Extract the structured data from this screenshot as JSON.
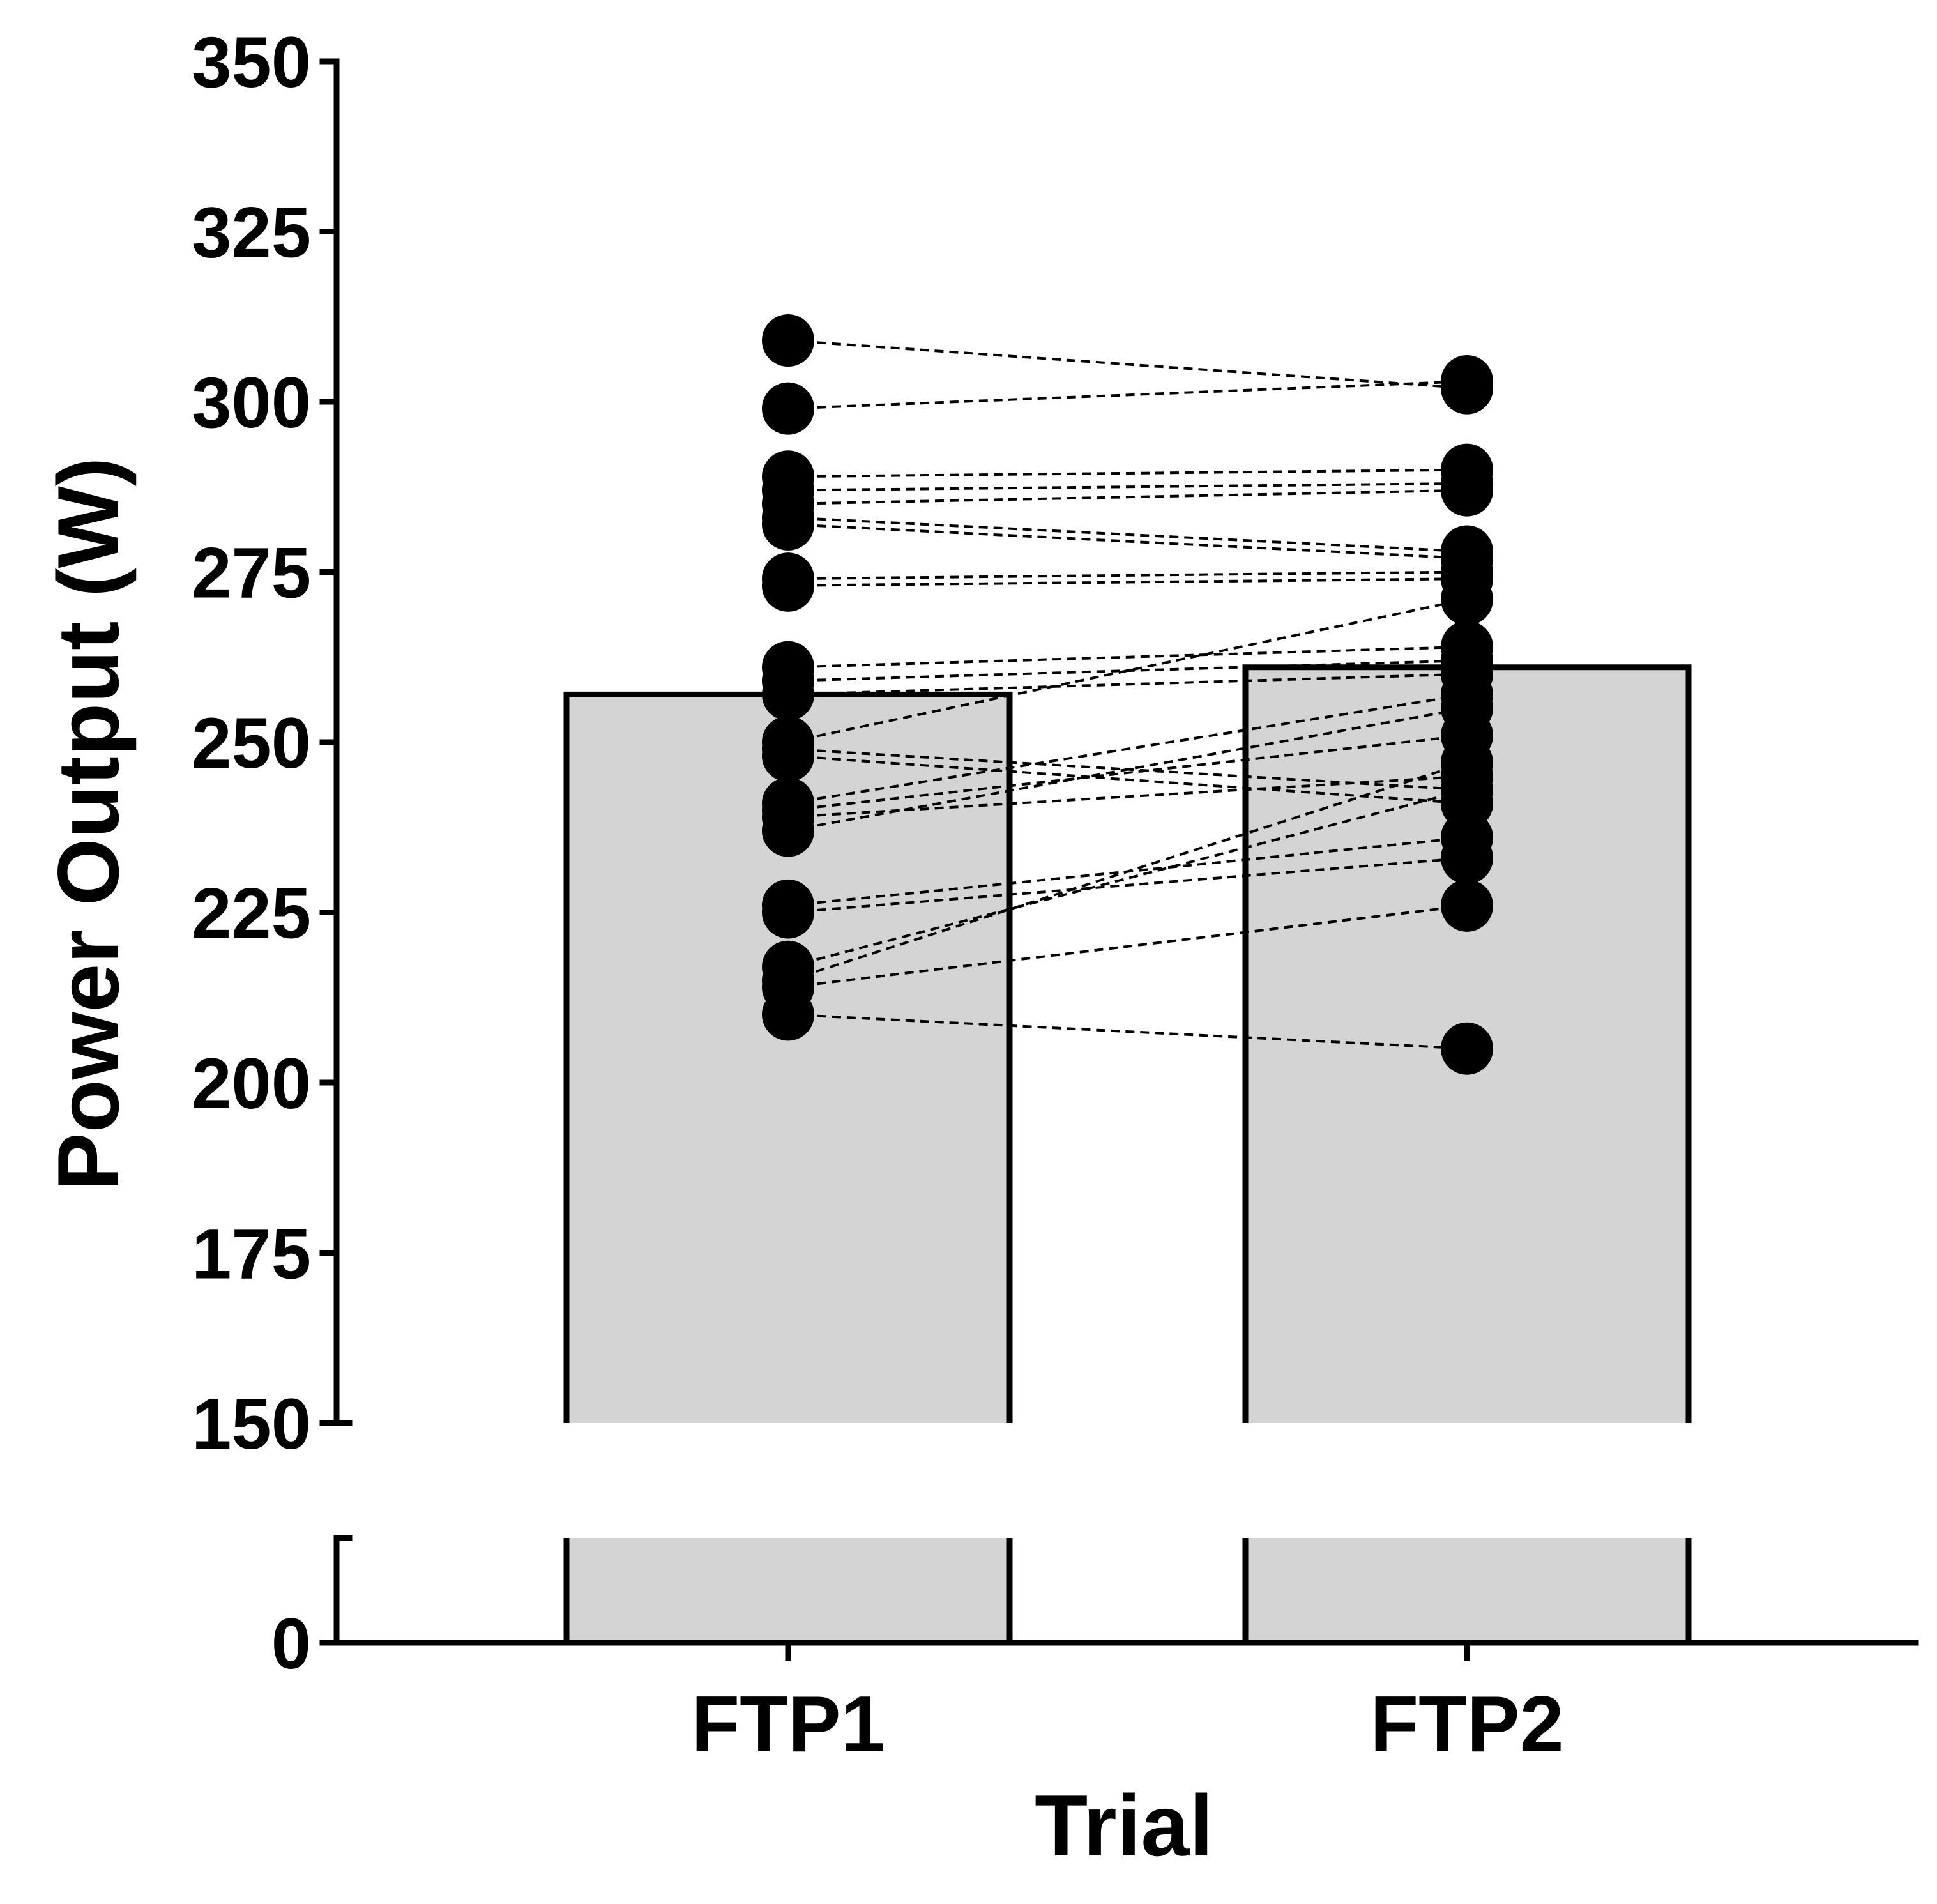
{
  "chart_data": {
    "type": "bar",
    "ylabel": "Power Output (W)",
    "xlabel": "Trial",
    "categories": [
      "FTP1",
      "FTP2"
    ],
    "bar_values": [
      257,
      261
    ],
    "bar_color": "#d4d4d4",
    "y_axis": {
      "broken": true,
      "lower_segment": {
        "range": [
          0,
          25
        ],
        "ticks": [
          0
        ]
      },
      "upper_segment": {
        "range": [
          150,
          350
        ],
        "ticks": [
          150,
          175,
          200,
          225,
          250,
          275,
          300,
          325,
          350
        ]
      }
    },
    "tick_labels": [
      "0",
      "150",
      "175",
      "200",
      "225",
      "250",
      "275",
      "300",
      "325",
      "350"
    ],
    "paired_points": [
      {
        "ftp1": 309,
        "ftp2": 302
      },
      {
        "ftp1": 299,
        "ftp2": 303
      },
      {
        "ftp1": 289,
        "ftp2": 290
      },
      {
        "ftp1": 287,
        "ftp2": 288
      },
      {
        "ftp1": 285,
        "ftp2": 287
      },
      {
        "ftp1": 283,
        "ftp2": 278
      },
      {
        "ftp1": 282,
        "ftp2": 277
      },
      {
        "ftp1": 274,
        "ftp2": 275
      },
      {
        "ftp1": 273,
        "ftp2": 274
      },
      {
        "ftp1": 261,
        "ftp2": 264
      },
      {
        "ftp1": 259,
        "ftp2": 262
      },
      {
        "ftp1": 257,
        "ftp2": 260
      },
      {
        "ftp1": 250,
        "ftp2": 271
      },
      {
        "ftp1": 249,
        "ftp2": 243
      },
      {
        "ftp1": 248,
        "ftp2": 241
      },
      {
        "ftp1": 241,
        "ftp2": 257
      },
      {
        "ftp1": 240,
        "ftp2": 251
      },
      {
        "ftp1": 239,
        "ftp2": 245
      },
      {
        "ftp1": 237,
        "ftp2": 255
      },
      {
        "ftp1": 226,
        "ftp2": 236
      },
      {
        "ftp1": 225,
        "ftp2": 233
      },
      {
        "ftp1": 217,
        "ftp2": 243
      },
      {
        "ftp1": 215,
        "ftp2": 247
      },
      {
        "ftp1": 214,
        "ftp2": 226
      },
      {
        "ftp1": 210,
        "ftp2": 205
      }
    ],
    "grid": false,
    "legend": "none"
  }
}
